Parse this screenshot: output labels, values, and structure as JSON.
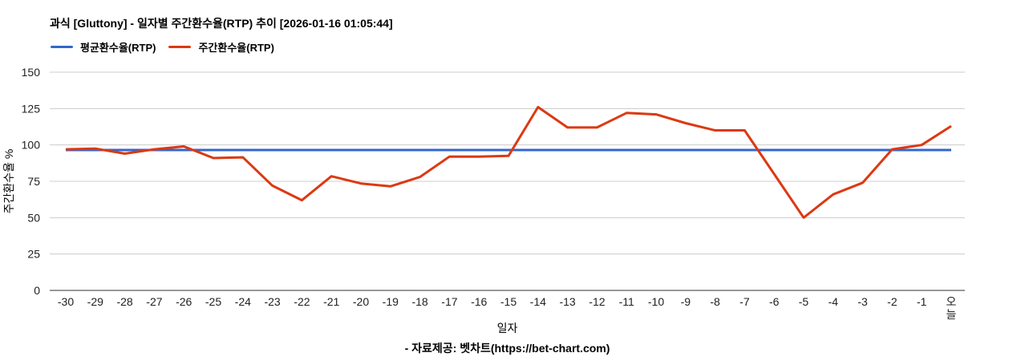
{
  "header": {
    "title": "과식 [Gluttony] - 일자별 주간환수율(RTP) 추이 [2026-01-16 01:05:44]"
  },
  "legend": {
    "items": [
      {
        "id": "average-rtp",
        "label": "평균환수율(RTP)",
        "color": "#3366cc"
      },
      {
        "id": "weekly-rtp",
        "label": "주간환수율(RTP)",
        "color": "#dc3912"
      }
    ]
  },
  "chart_data": {
    "type": "line",
    "title": "과식 [Gluttony] - 일자별 주간환수율(RTP) 추이 [2026-01-16 01:05:44]",
    "xlabel": "일자",
    "ylabel": "주간환수율 %",
    "ylim": [
      0,
      150
    ],
    "yticks": [
      0,
      25,
      50,
      75,
      100,
      125,
      150
    ],
    "grid": true,
    "legend_position": "top-left",
    "last_label_stacked": true,
    "categories": [
      "-30",
      "-29",
      "-28",
      "-27",
      "-26",
      "-25",
      "-24",
      "-23",
      "-22",
      "-21",
      "-20",
      "-19",
      "-18",
      "-17",
      "-16",
      "-15",
      "-14",
      "-13",
      "-12",
      "-11",
      "-10",
      "-9",
      "-8",
      "-7",
      "-6",
      "-5",
      "-4",
      "-3",
      "-2",
      "-1",
      "오늘"
    ],
    "series": [
      {
        "id": "average-rtp",
        "name": "평균환수율(RTP)",
        "color": "#3366cc",
        "values": [
          96.5,
          96.5,
          96.5,
          96.5,
          96.5,
          96.5,
          96.5,
          96.5,
          96.5,
          96.5,
          96.5,
          96.5,
          96.5,
          96.5,
          96.5,
          96.5,
          96.5,
          96.5,
          96.5,
          96.5,
          96.5,
          96.5,
          96.5,
          96.5,
          96.5,
          96.5,
          96.5,
          96.5,
          96.5,
          96.5,
          96.5
        ]
      },
      {
        "id": "weekly-rtp",
        "name": "주간환수율(RTP)",
        "color": "#dc3912",
        "values": [
          97,
          97.5,
          94,
          97,
          99,
          91,
          91.5,
          72,
          62,
          78.5,
          73.5,
          71.5,
          78,
          92,
          92,
          92.5,
          126,
          112,
          112,
          122,
          121,
          115,
          110,
          110,
          80,
          50,
          66,
          74,
          97,
          100,
          113
        ]
      }
    ]
  },
  "footer": {
    "credit": "- 자료제공: 벳차트(https://bet-chart.com)"
  }
}
